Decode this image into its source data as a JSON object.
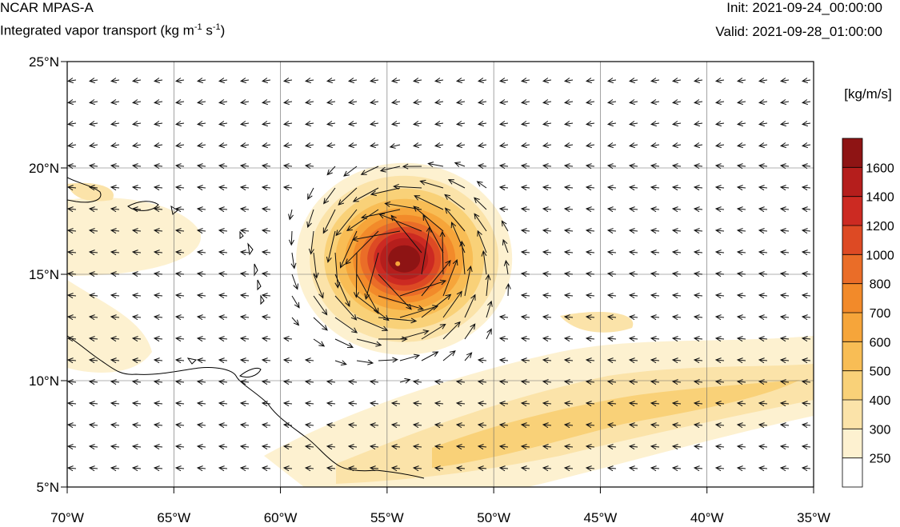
{
  "header": {
    "model": "NCAR MPAS-A",
    "field_prefix": "Integrated vapor transport (kg m",
    "field_exp1": "-1",
    "field_mid": " s",
    "field_exp2": "-1",
    "field_suffix": ")",
    "init": "Init: 2021-09-24_00:00:00",
    "valid": "Valid: 2021-09-28_01:00:00"
  },
  "map": {
    "lon_range": [
      -70,
      -35
    ],
    "lat_range": [
      5,
      25
    ],
    "lon_ticks": [
      {
        "value": -70,
        "label": "70°W"
      },
      {
        "value": -65,
        "label": "65°W"
      },
      {
        "value": -60,
        "label": "60°W"
      },
      {
        "value": -55,
        "label": "55°W"
      },
      {
        "value": -50,
        "label": "50°W"
      },
      {
        "value": -45,
        "label": "45°W"
      },
      {
        "value": -40,
        "label": "40°W"
      },
      {
        "value": -35,
        "label": "35°W"
      }
    ],
    "lat_ticks": [
      {
        "value": 25,
        "label": "25°N"
      },
      {
        "value": 20,
        "label": "20°N"
      },
      {
        "value": 15,
        "label": "15°N"
      },
      {
        "value": 10,
        "label": "10°N"
      },
      {
        "value": 5,
        "label": "5°N"
      }
    ],
    "grid": true,
    "storm_center": {
      "lon": -54.5,
      "lat": 15.5
    },
    "colors": {
      "ivt_250": "#fdf1d0",
      "ivt_300": "#fbe3a9",
      "ivt_400": "#f9d178",
      "ivt_500": "#f8bd55",
      "ivt_600": "#f6a53a",
      "ivt_700": "#f28a2a",
      "ivt_800": "#ea6d28",
      "ivt_1000": "#dd4a24",
      "ivt_1200": "#cc2a22",
      "ivt_1400": "#b51e1c",
      "ivt_1600": "#8e1414"
    }
  },
  "colorbar": {
    "units": "[kg/m/s]",
    "levels": [
      "1600",
      "1400",
      "1200",
      "1000",
      "800",
      "700",
      "600",
      "500",
      "400",
      "300",
      "250"
    ],
    "colors": [
      "#8e1414",
      "#b51e1c",
      "#cc2a22",
      "#dd4a24",
      "#ea6d28",
      "#f28a2a",
      "#f6a53a",
      "#f8bd55",
      "#f9d178",
      "#fbe3a9",
      "#fdf1d0",
      "#ffffff"
    ]
  }
}
